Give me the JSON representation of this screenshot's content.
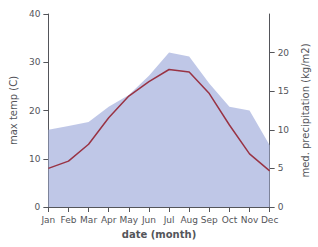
{
  "chart_data": {
    "type": "line",
    "xlabel": "date (month)",
    "ylabel": "max temp (C)",
    "y2label": "med. precipitation (kg/m2)",
    "categories": [
      "Jan",
      "Feb",
      "Mar",
      "Apr",
      "May",
      "Jun",
      "Jul",
      "Aug",
      "Sep",
      "Oct",
      "Nov",
      "Dec"
    ],
    "series": [
      {
        "type": "area",
        "color": "#aab4df",
        "axis": "y2",
        "values": [
          10.0,
          10.5,
          11.0,
          13.0,
          14.5,
          17.0,
          20.0,
          19.5,
          16.0,
          13.0,
          12.5,
          8.0
        ]
      },
      {
        "type": "line",
        "color": "#993344",
        "values": [
          8.0,
          9.5,
          13.0,
          18.5,
          23.0,
          26.0,
          28.5,
          28.0,
          23.5,
          17.0,
          11.0,
          7.5
        ]
      }
    ],
    "ylim": [
      0,
      40
    ],
    "yticks": [
      0,
      10,
      20,
      30,
      40
    ],
    "y2lim": [
      0,
      25
    ],
    "y2ticks": [
      0,
      5,
      10,
      15,
      20
    ],
    "grid": false
  }
}
